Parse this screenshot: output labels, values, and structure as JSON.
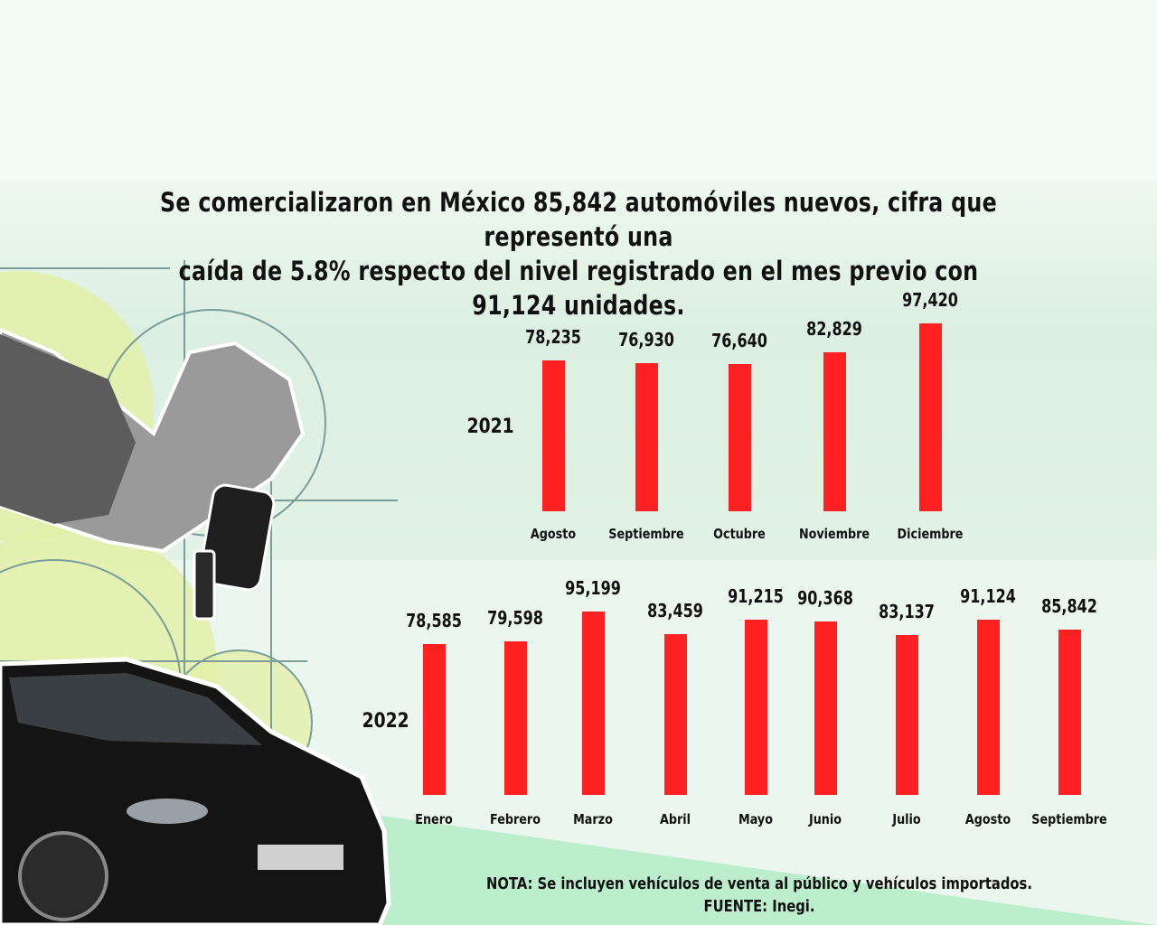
{
  "headline": {
    "line1": "Se comercializaron en México 85,842 automóviles nuevos, cifra que representó una",
    "line2": "caída de 5.8% respecto del nivel registrado en el mes previo con 91,124 unidades."
  },
  "colors": {
    "bar": "#ff2121",
    "text": "#111111",
    "background": "#eaf6ee"
  },
  "chart_data": [
    {
      "type": "bar",
      "title": "2021",
      "categories": [
        "Agosto",
        "Septiembre",
        "Octubre",
        "Noviembre",
        "Diciembre"
      ],
      "values": [
        78235,
        76930,
        76640,
        82829,
        97420
      ],
      "labels": [
        "78,235",
        "76,930",
        "76,640",
        "82,829",
        "97,420"
      ],
      "ylim": [
        0,
        100000
      ],
      "grid": false
    },
    {
      "type": "bar",
      "title": "2022",
      "categories": [
        "Enero",
        "Febrero",
        "Marzo",
        "Abril",
        "Mayo",
        "Junio",
        "Julio",
        "Agosto",
        "Septiembre"
      ],
      "values": [
        78585,
        79598,
        95199,
        83459,
        91215,
        90368,
        83137,
        91124,
        85842
      ],
      "labels": [
        "78,585",
        "79,598",
        "95,199",
        "83,459",
        "91,215",
        "90,368",
        "83,137",
        "91,124",
        "85,842"
      ],
      "ylim": [
        0,
        100000
      ],
      "grid": false
    }
  ],
  "footer": {
    "note": "NOTA: Se incluyen vehículos de venta al público y vehículos importados.",
    "source": "FUENTE: Inegi."
  }
}
